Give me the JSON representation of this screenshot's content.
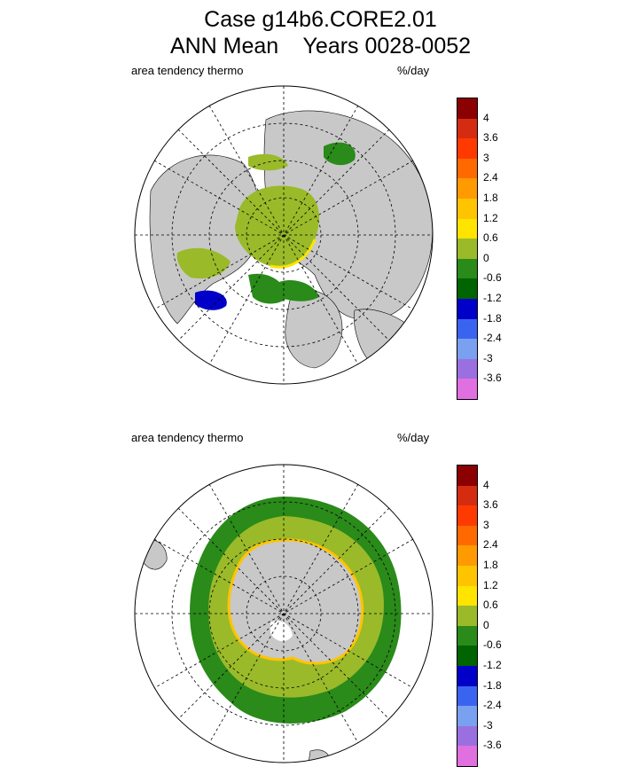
{
  "header": {
    "title_line1": "Case g14b6.CORE2.01",
    "title_line2": "ANN Mean    Years 0028-0052"
  },
  "panels": [
    {
      "label_left": "area tendency thermo",
      "label_right": "%/day",
      "hemisphere": "north"
    },
    {
      "label_left": "area tendency thermo",
      "label_right": "%/day",
      "hemisphere": "south"
    }
  ],
  "colorbar": {
    "colors": [
      "#8b0000",
      "#d42c10",
      "#ff3a00",
      "#ff6a00",
      "#ff9a00",
      "#ffc400",
      "#ffe400",
      "#9aba2a",
      "#2a8a1a",
      "#006400",
      "#0000c8",
      "#3a64f0",
      "#7aa0f0",
      "#9a70e0",
      "#e070e0"
    ],
    "tick_labels": [
      "4",
      "3.6",
      "3",
      "2.4",
      "1.8",
      "1.2",
      "0.6",
      "0",
      "-0.6",
      "-1.2",
      "-1.8",
      "-2.4",
      "-3",
      "-3.6"
    ]
  }
}
